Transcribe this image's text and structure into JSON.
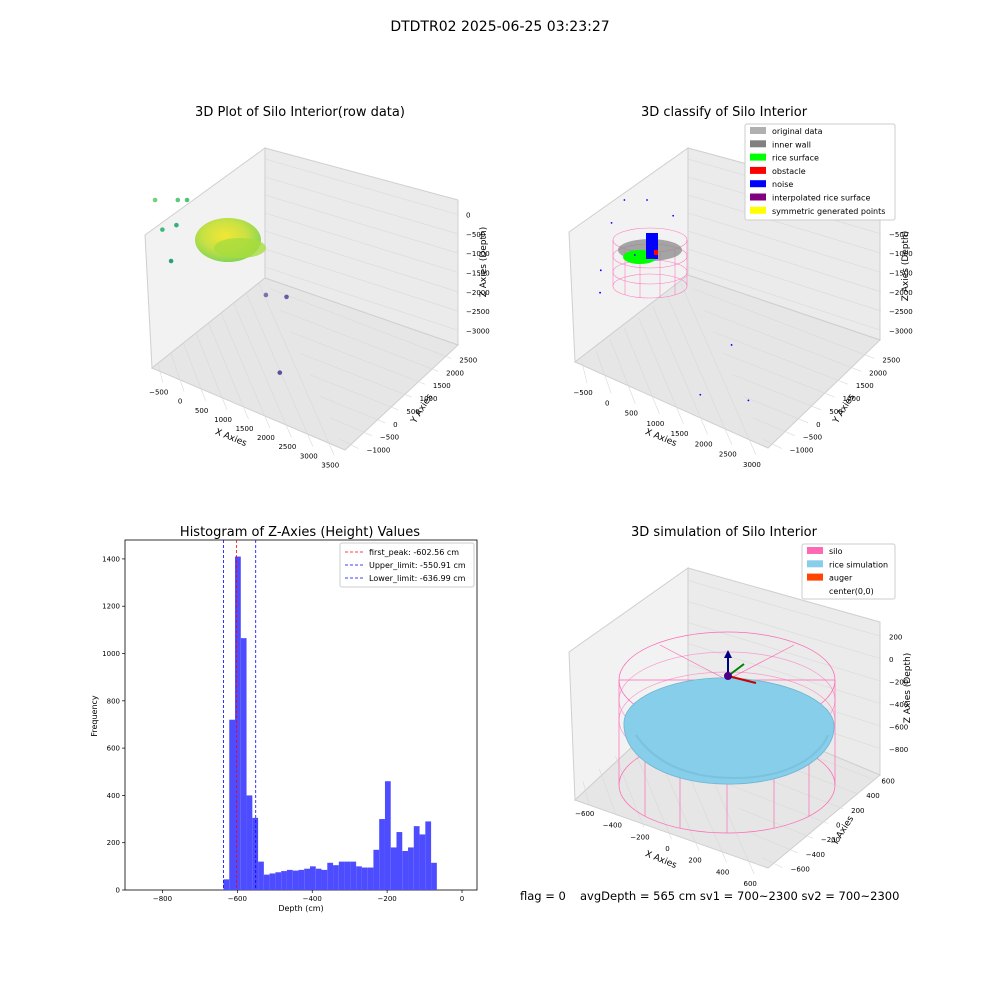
{
  "figure_title": "DTDTR02 2025-06-25 03:23:27",
  "status_line": {
    "flag": "flag = 0",
    "depth": "avgDepth = 565 cm  sv1 = 700~2300  sv2 = 700~2300"
  },
  "colors": {
    "histogram_bar": "#4d4dff",
    "first_peak_line": "#ff0000",
    "limit_lines": "#0000ff",
    "silo_wire": "#ff69b4",
    "rice_surface": "#87ceeb",
    "pane": "#f2f2f2",
    "grid": "#d9d9d9"
  },
  "chart_data": [
    {
      "type": "scatter",
      "title": "3D Plot of Silo Interior(row data)",
      "xlabel": "X Axies",
      "ylabel": "Y Axies",
      "zlabel": "Z Axies (Depth)",
      "x_ticks": [
        "−500",
        "0",
        "500",
        "1000",
        "1500",
        "2000",
        "2500",
        "3000",
        "3500"
      ],
      "y_ticks": [
        "−1000",
        "−500",
        "0",
        "500",
        "1000",
        "1500",
        "2000",
        "2500"
      ],
      "z_ticks": [
        "0",
        "−500",
        "−1000",
        "−1500",
        "−2000",
        "−2500",
        "−3000"
      ],
      "xlim": [
        -700,
        3600
      ],
      "ylim": [
        -1100,
        2700
      ],
      "zlim": [
        -3200,
        100
      ],
      "colormap": "viridis",
      "cluster": {
        "center": [
          0,
          0
        ],
        "radius": 600,
        "z_range": [
          -900,
          -400
        ]
      },
      "outliers": [
        {
          "x": 600,
          "y": 2000,
          "z": -900,
          "color": "#6fd27a"
        },
        {
          "x": 1200,
          "y": 2200,
          "z": -1100,
          "color": "#5dc97a"
        },
        {
          "x": 1500,
          "y": 2400,
          "z": -1300,
          "color": "#4fc37a"
        },
        {
          "x": 200,
          "y": 800,
          "z": -1500,
          "color": "#3fb87a"
        },
        {
          "x": 700,
          "y": 1200,
          "z": -1600,
          "color": "#35b07a"
        },
        {
          "x": 300,
          "y": 600,
          "z": -2000,
          "color": "#2aa07a"
        },
        {
          "x": 2600,
          "y": 1000,
          "z": -2200,
          "color": "#7f6fb0"
        },
        {
          "x": 3200,
          "y": 1300,
          "z": -2300,
          "color": "#6a5ba8"
        },
        {
          "x": 2300,
          "y": -300,
          "z": -2800,
          "color": "#5a4f9c"
        }
      ]
    },
    {
      "type": "scatter",
      "title": "3D classify of Silo Interior",
      "xlabel": "X Axies",
      "ylabel": "Y Axies",
      "zlabel": "Z Axies (Depth)",
      "x_ticks": [
        "−500",
        "0",
        "500",
        "1000",
        "1500",
        "2000",
        "2500",
        "3000"
      ],
      "y_ticks": [
        "−1000",
        "−500",
        "0",
        "500",
        "1000",
        "1500",
        "2000",
        "2500"
      ],
      "z_ticks": [
        "0",
        "−500",
        "−1000",
        "−1500",
        "−2000",
        "−2500",
        "−3000"
      ],
      "xlim": [
        -700,
        3200
      ],
      "ylim": [
        -1100,
        2700
      ],
      "zlim": [
        -3200,
        300
      ],
      "legend": [
        {
          "label": "original data",
          "color": "#b0b0b0"
        },
        {
          "label": "inner wall",
          "color": "#808080"
        },
        {
          "label": "rice surface",
          "color": "#00ff00"
        },
        {
          "label": "obstacle",
          "color": "#ff0000"
        },
        {
          "label": "noise",
          "color": "#0000ff"
        },
        {
          "label": "interpolated rice surface",
          "color": "#800080"
        },
        {
          "label": "symmetric generated points",
          "color": "#ffff00"
        }
      ],
      "legend_position": "top-right",
      "noise_points": [
        {
          "x": 1500,
          "y": 2200,
          "z": -700
        },
        {
          "x": 2000,
          "y": 2300,
          "z": -800
        },
        {
          "x": 2400,
          "y": 2000,
          "z": -1200
        },
        {
          "x": 900,
          "y": 1400,
          "z": -1500
        },
        {
          "x": 1200,
          "y": 1000,
          "z": -1700
        },
        {
          "x": 300,
          "y": 500,
          "z": -2000
        },
        {
          "x": 200,
          "y": 300,
          "z": -2400
        },
        {
          "x": 2900,
          "y": 400,
          "z": -2400
        },
        {
          "x": 2900,
          "y": -400,
          "z": -2900
        },
        {
          "x": 1800,
          "y": -700,
          "z": -3000
        }
      ]
    },
    {
      "type": "bar",
      "title": "Histogram of Z-Axies (Height) Values",
      "xlabel": "Depth (cm)",
      "ylabel": "Frequency",
      "xlim": [
        -900,
        40
      ],
      "ylim": [
        0,
        1480
      ],
      "x_ticks": [
        "−800",
        "−600",
        "−400",
        "−200",
        "0"
      ],
      "x_tick_values": [
        -800,
        -600,
        -400,
        -200,
        0
      ],
      "y_ticks": [
        0,
        200,
        400,
        600,
        800,
        1000,
        1200,
        1400
      ],
      "bin_width": 15.4,
      "bins_start": [
        -636.99,
        -621.59,
        -606.19,
        -590.79,
        -575.39,
        -559.99,
        -544.59,
        -529.19,
        -513.79,
        -498.39,
        -482.99,
        -467.59,
        -452.19,
        -436.79,
        -421.39,
        -405.99,
        -390.59,
        -375.19,
        -359.79,
        -344.39,
        -328.99,
        -313.59,
        -298.19,
        -282.79,
        -267.39,
        -251.99,
        -236.59,
        -221.19,
        -205.79,
        -190.39,
        -174.99,
        -159.59,
        -144.19,
        -128.79,
        -113.39,
        -97.99,
        -82.59,
        -67.19,
        -51.79,
        -36.39,
        -20.99,
        -5.59
      ],
      "values": [
        45,
        720,
        1410,
        1065,
        400,
        305,
        120,
        65,
        70,
        75,
        80,
        85,
        82,
        85,
        90,
        100,
        90,
        85,
        115,
        105,
        120,
        120,
        120,
        100,
        95,
        95,
        170,
        300,
        460,
        180,
        245,
        165,
        180,
        270,
        235,
        290,
        115,
        0,
        0,
        0,
        0,
        0
      ],
      "lines": [
        {
          "label": "first_peak: -602.56 cm",
          "x": -602.56,
          "color": "#ff0000"
        },
        {
          "label": "Upper_limit: -550.91 cm",
          "x": -550.91,
          "color": "#0000ff"
        },
        {
          "label": "Lower_limit: -636.99 cm",
          "x": -636.99,
          "color": "#0000ff"
        }
      ],
      "legend_position": "top-right"
    },
    {
      "type": "surface",
      "title": "3D simulation of Silo Interior",
      "xlabel": "X Axies",
      "ylabel": "Y Axies",
      "zlabel": "Z Axies (Depth)",
      "x_ticks": [
        "−600",
        "−400",
        "−200",
        "0",
        "200",
        "400",
        "600"
      ],
      "y_ticks": [
        "−600",
        "−400",
        "−200",
        "0",
        "200",
        "400",
        "600"
      ],
      "z_ticks": [
        "200",
        "0",
        "−200",
        "−400",
        "−600",
        "−800"
      ],
      "legend": [
        {
          "label": "silo",
          "color": "#ff69b4"
        },
        {
          "label": "rice simulation",
          "color": "#87ceeb"
        },
        {
          "label": "auger",
          "color": "#ff4500"
        },
        {
          "label": "center(0,0)",
          "color": "#ffffff"
        }
      ],
      "legend_position": "top-right",
      "silo_radius": 600,
      "silo_z_range": [
        -900,
        0
      ],
      "rice_surface_depth": -565
    }
  ]
}
